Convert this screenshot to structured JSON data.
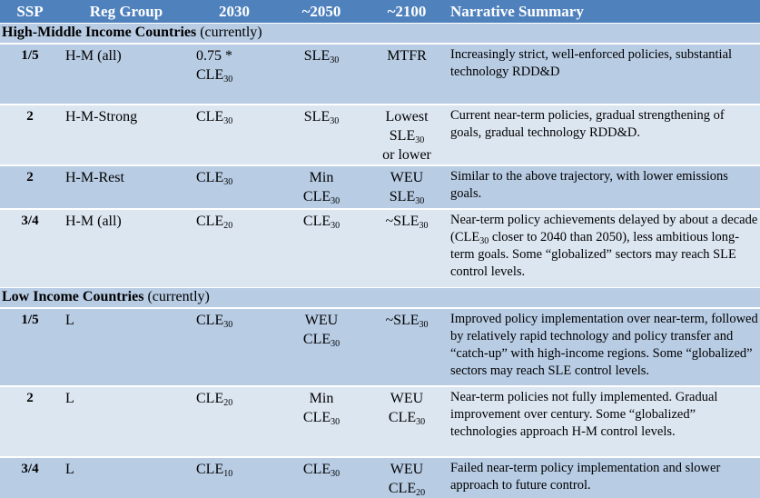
{
  "headers": {
    "ssp": "SSP",
    "reg_group": "Reg Group",
    "y2030": "2030",
    "y2050": "~2050",
    "y2100": "~2100",
    "narrative": "Narrative Summary"
  },
  "sections": [
    {
      "title_bold": "High-Middle Income Countries",
      "title_rest": " (currently)",
      "rows": [
        {
          "ssp": "1/5",
          "reg": "H-M (all)",
          "y2030": [
            {
              "pre": "0.75 *"
            },
            {
              "base": "CLE",
              "sub": "30"
            }
          ],
          "y2050": [
            {
              "base": "SLE",
              "sub": "30"
            }
          ],
          "y2100": [
            {
              "pre": "MTFR"
            }
          ],
          "narrative": "Increasingly strict, well-enforced policies, substantial technology RDD&D"
        },
        {
          "ssp": "2",
          "reg": "H-M-Strong",
          "y2030": [
            {
              "base": "CLE",
              "sub": "30"
            }
          ],
          "y2050": [
            {
              "base": "SLE",
              "sub": "30"
            }
          ],
          "y2100": [
            {
              "pre": "Lowest"
            },
            {
              "base": "SLE",
              "sub": "30"
            },
            {
              "pre": "or lower"
            }
          ],
          "narrative": "Current near-term policies, gradual strengthening of goals, gradual technology RDD&D."
        },
        {
          "ssp": "2",
          "reg": "H-M-Rest",
          "y2030": [
            {
              "base": "CLE",
              "sub": "30"
            }
          ],
          "y2050": [
            {
              "pre": "Min"
            },
            {
              "base": "CLE",
              "sub": "30"
            }
          ],
          "y2100": [
            {
              "pre": "WEU"
            },
            {
              "base": "SLE",
              "sub": "30"
            }
          ],
          "narrative": "Similar to the above trajectory, with lower emissions goals."
        },
        {
          "ssp": "3/4",
          "reg": "H-M (all)",
          "y2030": [
            {
              "base": "CLE",
              "sub": "20"
            }
          ],
          "y2050": [
            {
              "base": "CLE",
              "sub": "30"
            }
          ],
          "y2100": [
            {
              "base": "~SLE",
              "sub": "30"
            }
          ],
          "narrative_parts": [
            {
              "t": "Near-term policy achievements delayed by about a decade (CLE"
            },
            {
              "sub": "30"
            },
            {
              "t": " closer to 2040 than 2050), less ambitious long-term goals. Some “globalized” sectors may reach SLE control levels."
            }
          ]
        }
      ]
    },
    {
      "title_bold": "Low Income Countries",
      "title_rest": " (currently)",
      "rows": [
        {
          "ssp": "1/5",
          "reg": "L",
          "y2030": [
            {
              "base": "CLE",
              "sub": "30"
            }
          ],
          "y2050": [
            {
              "pre": "WEU"
            },
            {
              "base": "CLE",
              "sub": "30"
            }
          ],
          "y2100": [
            {
              "base": "~SLE",
              "sub": "30"
            }
          ],
          "narrative": "Improved policy implementation over near-term, followed by relatively rapid technology and policy transfer and “catch-up” with high-income regions. Some “globalized” sectors may reach SLE control levels."
        },
        {
          "ssp": "2",
          "reg": "L",
          "y2030": [
            {
              "base": "CLE",
              "sub": "20"
            }
          ],
          "y2050": [
            {
              "pre": "Min"
            },
            {
              "base": "CLE",
              "sub": "30"
            }
          ],
          "y2100": [
            {
              "pre": "WEU"
            },
            {
              "base": "CLE",
              "sub": "30"
            }
          ],
          "narrative": "Near-term policies not fully implemented. Gradual improvement over century. Some “globalized” technologies approach H-M control levels."
        },
        {
          "ssp": "3/4",
          "reg": "L",
          "y2030": [
            {
              "base": "CLE",
              "sub": "10"
            }
          ],
          "y2050": [
            {
              "base": "CLE",
              "sub": "30"
            }
          ],
          "y2100": [
            {
              "pre": "WEU"
            },
            {
              "base": "CLE",
              "sub": "20"
            }
          ],
          "narrative": "Failed near-term policy implementation and slower approach to future control."
        }
      ]
    }
  ]
}
